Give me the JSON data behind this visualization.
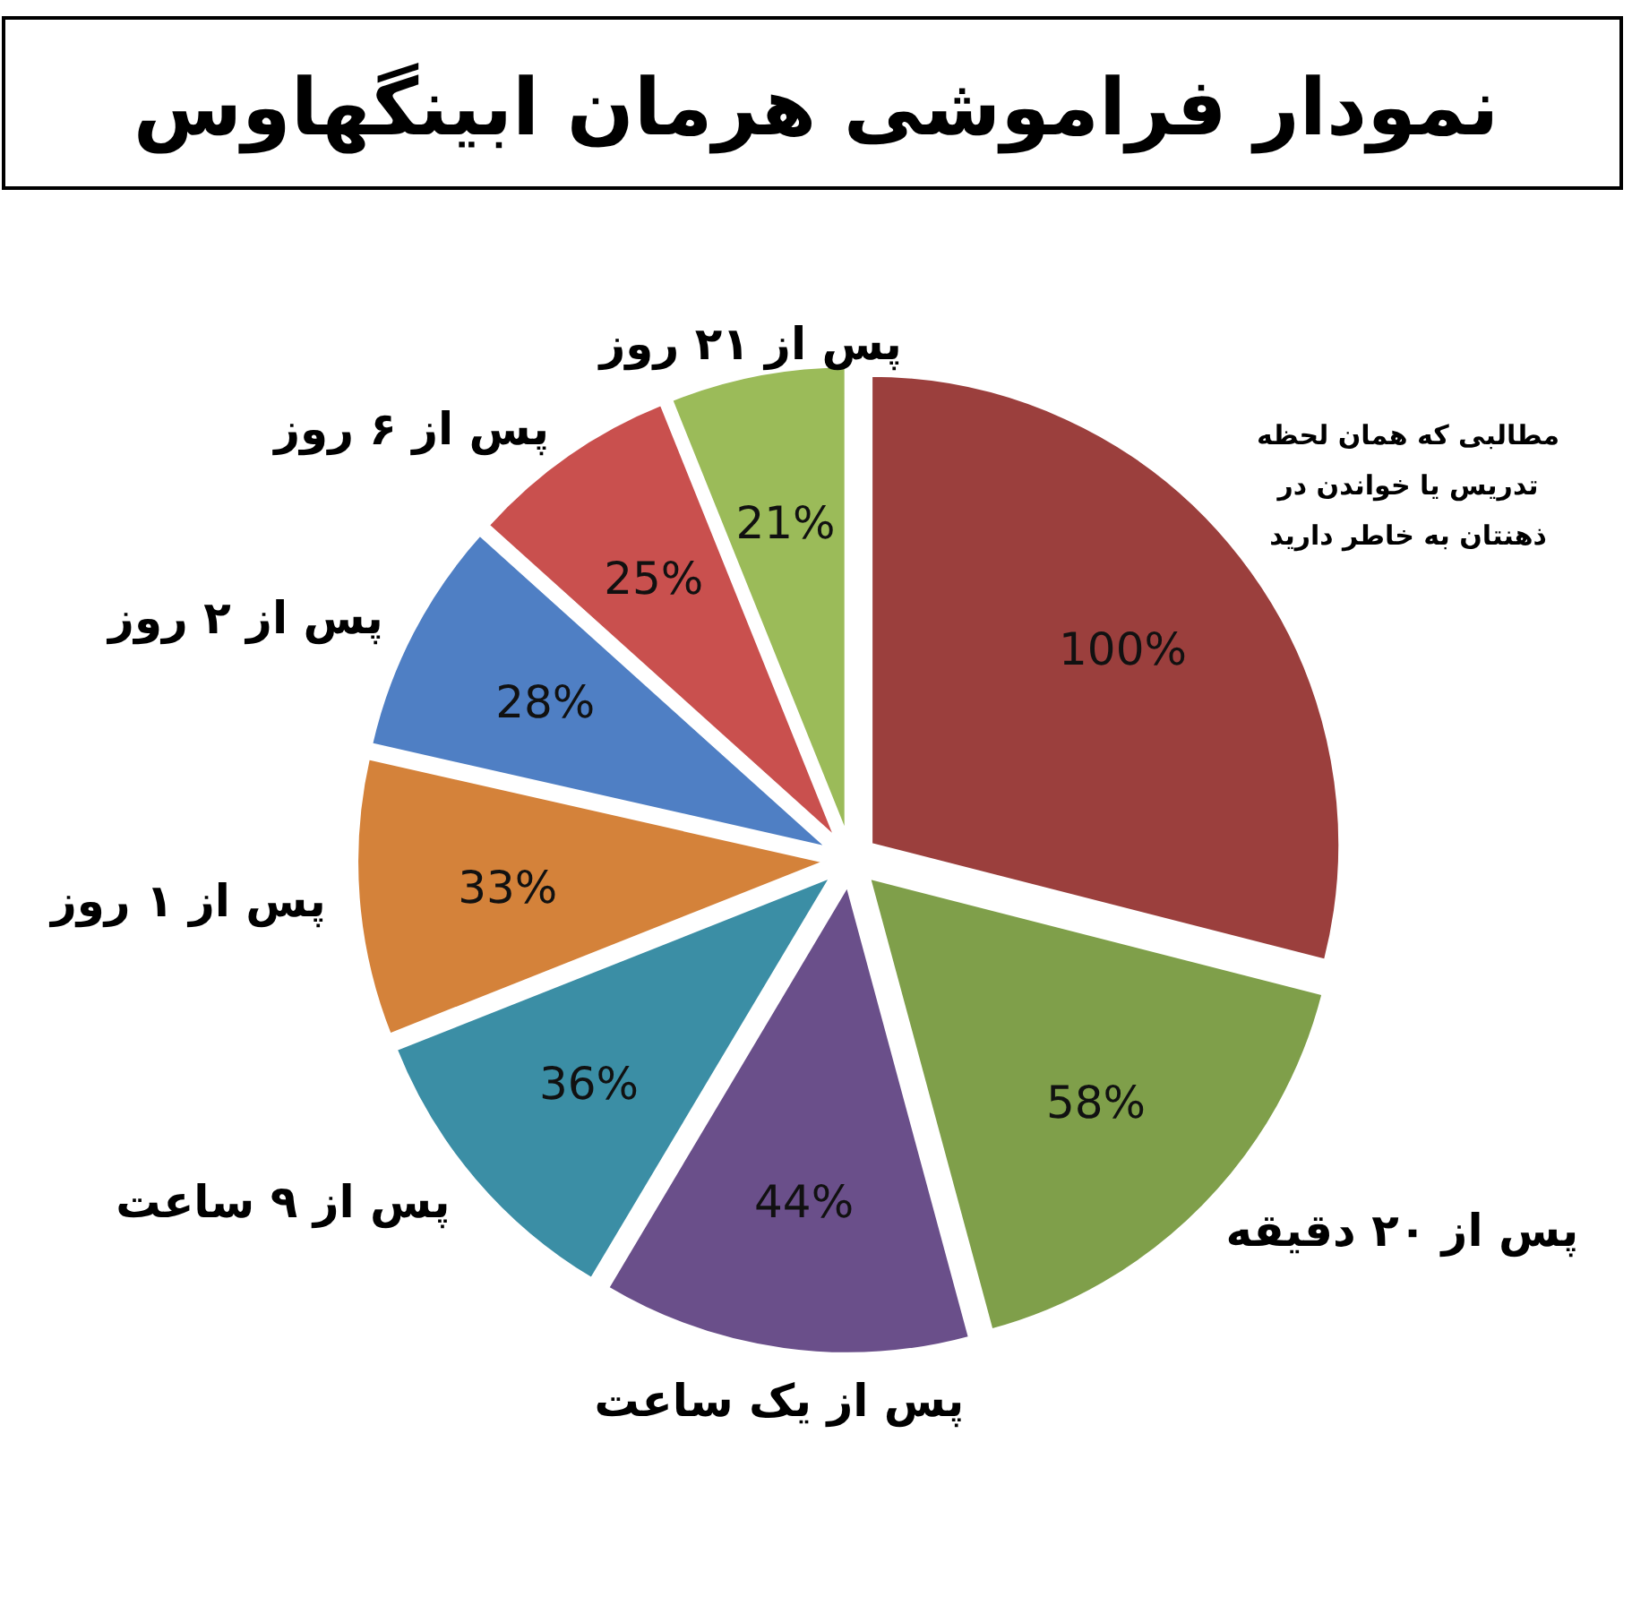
{
  "chart_data": {
    "type": "pie",
    "title": "نمودار فراموشی هرمان ابینگهاوس",
    "categories": [
      "مطالبی که همان لحظه تدریس یا خواندن در ذهنتان به خاطر دارید",
      "پس از ۲۰ دقیقه",
      "پس از یک ساعت",
      "پس از ۹ ساعت",
      "پس از ۱ روز",
      "پس از ۲ روز",
      "پس از ۶ روز",
      "پس از ۲۱ روز"
    ],
    "values": [
      100,
      58,
      44,
      36,
      33,
      28,
      25,
      21
    ],
    "colors": [
      "#9b3f3d",
      "#7f9f4a",
      "#6a4f8a",
      "#3b8ea5",
      "#d4823a",
      "#4f7fc4",
      "#c9504e",
      "#9bbb59"
    ],
    "value_labels": [
      "100%",
      "58%",
      "44%",
      "36%",
      "33%",
      "28%",
      "25%",
      "21%"
    ]
  }
}
